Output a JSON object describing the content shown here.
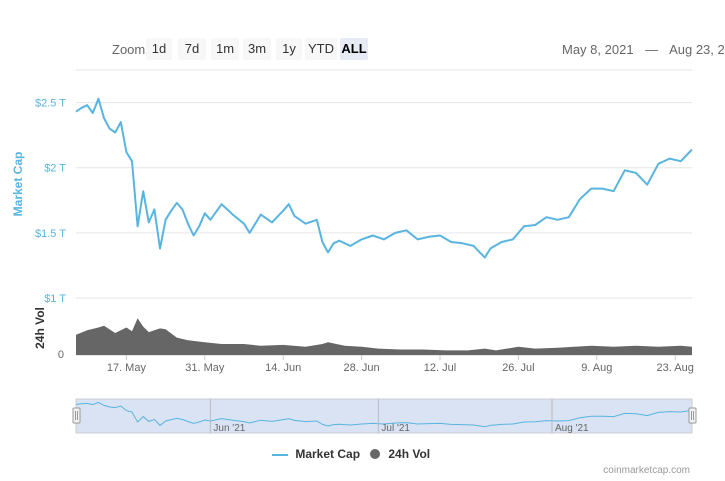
{
  "toolbar": {
    "zoom_label": "Zoom",
    "buttons": [
      "1d",
      "7d",
      "1m",
      "3m",
      "1y",
      "YTD",
      "ALL"
    ],
    "selected": "ALL",
    "date_from": "May 8, 2021",
    "date_sep": "—",
    "date_to": "Aug 23, 2"
  },
  "credit": "coinmarketcap.com",
  "colors": {
    "market_cap": "#59b4df",
    "volume": "#666666",
    "navigator_fill": "#c9d7ee",
    "axis_label": "#59b4df"
  },
  "chart_data": {
    "type": "line",
    "title": "",
    "x_range": [
      "2021-05-08",
      "2021-08-26"
    ],
    "x_ticks": [
      "17. May",
      "31. May",
      "14. Jun",
      "28. Jun",
      "12. Jul",
      "26. Jul",
      "9. Aug",
      "23. Aug"
    ],
    "navigator_ticks": [
      "Jun '21",
      "Jul '21",
      "Aug '21"
    ],
    "series": [
      {
        "name": "Market Cap",
        "axis_label": "Market Cap",
        "y_ticks": [
          "$2.5 T",
          "$2 T",
          "$1.5 T",
          "$1 T"
        ],
        "y_range": [
          1.0,
          2.75
        ],
        "unit": "trillion USD",
        "points": [
          [
            "2021-05-08",
            2.43
          ],
          [
            "2021-05-09",
            2.46
          ],
          [
            "2021-05-10",
            2.48
          ],
          [
            "2021-05-11",
            2.42
          ],
          [
            "2021-05-12",
            2.53
          ],
          [
            "2021-05-13",
            2.38
          ],
          [
            "2021-05-14",
            2.3
          ],
          [
            "2021-05-15",
            2.27
          ],
          [
            "2021-05-16",
            2.35
          ],
          [
            "2021-05-17",
            2.12
          ],
          [
            "2021-05-18",
            2.05
          ],
          [
            "2021-05-19",
            1.55
          ],
          [
            "2021-05-20",
            1.82
          ],
          [
            "2021-05-21",
            1.58
          ],
          [
            "2021-05-22",
            1.68
          ],
          [
            "2021-05-23",
            1.38
          ],
          [
            "2021-05-24",
            1.6
          ],
          [
            "2021-05-25",
            1.67
          ],
          [
            "2021-05-26",
            1.73
          ],
          [
            "2021-05-27",
            1.68
          ],
          [
            "2021-05-28",
            1.57
          ],
          [
            "2021-05-29",
            1.48
          ],
          [
            "2021-05-30",
            1.55
          ],
          [
            "2021-05-31",
            1.65
          ],
          [
            "2021-06-01",
            1.6
          ],
          [
            "2021-06-03",
            1.72
          ],
          [
            "2021-06-05",
            1.64
          ],
          [
            "2021-06-07",
            1.57
          ],
          [
            "2021-06-08",
            1.5
          ],
          [
            "2021-06-10",
            1.64
          ],
          [
            "2021-06-12",
            1.58
          ],
          [
            "2021-06-14",
            1.67
          ],
          [
            "2021-06-15",
            1.72
          ],
          [
            "2021-06-16",
            1.63
          ],
          [
            "2021-06-18",
            1.57
          ],
          [
            "2021-06-20",
            1.6
          ],
          [
            "2021-06-21",
            1.43
          ],
          [
            "2021-06-22",
            1.35
          ],
          [
            "2021-06-23",
            1.42
          ],
          [
            "2021-06-24",
            1.44
          ],
          [
            "2021-06-26",
            1.4
          ],
          [
            "2021-06-28",
            1.45
          ],
          [
            "2021-06-30",
            1.48
          ],
          [
            "2021-07-02",
            1.45
          ],
          [
            "2021-07-04",
            1.5
          ],
          [
            "2021-07-06",
            1.52
          ],
          [
            "2021-07-08",
            1.45
          ],
          [
            "2021-07-10",
            1.47
          ],
          [
            "2021-07-12",
            1.48
          ],
          [
            "2021-07-14",
            1.43
          ],
          [
            "2021-07-16",
            1.42
          ],
          [
            "2021-07-18",
            1.4
          ],
          [
            "2021-07-20",
            1.31
          ],
          [
            "2021-07-21",
            1.38
          ],
          [
            "2021-07-23",
            1.43
          ],
          [
            "2021-07-25",
            1.45
          ],
          [
            "2021-07-27",
            1.55
          ],
          [
            "2021-07-29",
            1.56
          ],
          [
            "2021-07-31",
            1.62
          ],
          [
            "2021-08-02",
            1.6
          ],
          [
            "2021-08-04",
            1.62
          ],
          [
            "2021-08-06",
            1.76
          ],
          [
            "2021-08-08",
            1.84
          ],
          [
            "2021-08-10",
            1.84
          ],
          [
            "2021-08-12",
            1.82
          ],
          [
            "2021-08-14",
            1.98
          ],
          [
            "2021-08-16",
            1.96
          ],
          [
            "2021-08-18",
            1.87
          ],
          [
            "2021-08-20",
            2.03
          ],
          [
            "2021-08-22",
            2.07
          ],
          [
            "2021-08-24",
            2.05
          ],
          [
            "2021-08-26",
            2.14
          ]
        ]
      },
      {
        "name": "24h Vol",
        "axis_label": "24h Vol",
        "y_ticks": [
          "0"
        ],
        "y_range": [
          0,
          0.6
        ],
        "unit": "trillion USD",
        "points": [
          [
            "2021-05-08",
            0.22
          ],
          [
            "2021-05-10",
            0.27
          ],
          [
            "2021-05-12",
            0.3
          ],
          [
            "2021-05-13",
            0.32
          ],
          [
            "2021-05-15",
            0.24
          ],
          [
            "2021-05-17",
            0.3
          ],
          [
            "2021-05-18",
            0.26
          ],
          [
            "2021-05-19",
            0.4
          ],
          [
            "2021-05-20",
            0.31
          ],
          [
            "2021-05-21",
            0.25
          ],
          [
            "2021-05-23",
            0.29
          ],
          [
            "2021-05-24",
            0.28
          ],
          [
            "2021-05-26",
            0.19
          ],
          [
            "2021-05-28",
            0.16
          ],
          [
            "2021-05-31",
            0.14
          ],
          [
            "2021-06-03",
            0.12
          ],
          [
            "2021-06-07",
            0.12
          ],
          [
            "2021-06-10",
            0.1
          ],
          [
            "2021-06-14",
            0.11
          ],
          [
            "2021-06-18",
            0.09
          ],
          [
            "2021-06-21",
            0.12
          ],
          [
            "2021-06-22",
            0.14
          ],
          [
            "2021-06-25",
            0.1
          ],
          [
            "2021-06-28",
            0.09
          ],
          [
            "2021-07-01",
            0.07
          ],
          [
            "2021-07-05",
            0.06
          ],
          [
            "2021-07-09",
            0.06
          ],
          [
            "2021-07-13",
            0.05
          ],
          [
            "2021-07-17",
            0.05
          ],
          [
            "2021-07-20",
            0.07
          ],
          [
            "2021-07-22",
            0.05
          ],
          [
            "2021-07-26",
            0.09
          ],
          [
            "2021-07-29",
            0.07
          ],
          [
            "2021-08-02",
            0.08
          ],
          [
            "2021-08-05",
            0.09
          ],
          [
            "2021-08-08",
            0.1
          ],
          [
            "2021-08-12",
            0.09
          ],
          [
            "2021-08-16",
            0.1
          ],
          [
            "2021-08-20",
            0.09
          ],
          [
            "2021-08-24",
            0.1
          ],
          [
            "2021-08-26",
            0.09
          ]
        ]
      }
    ],
    "legend": [
      "Market Cap",
      "24h Vol"
    ],
    "legend_position": "bottom-center",
    "grid": true
  }
}
